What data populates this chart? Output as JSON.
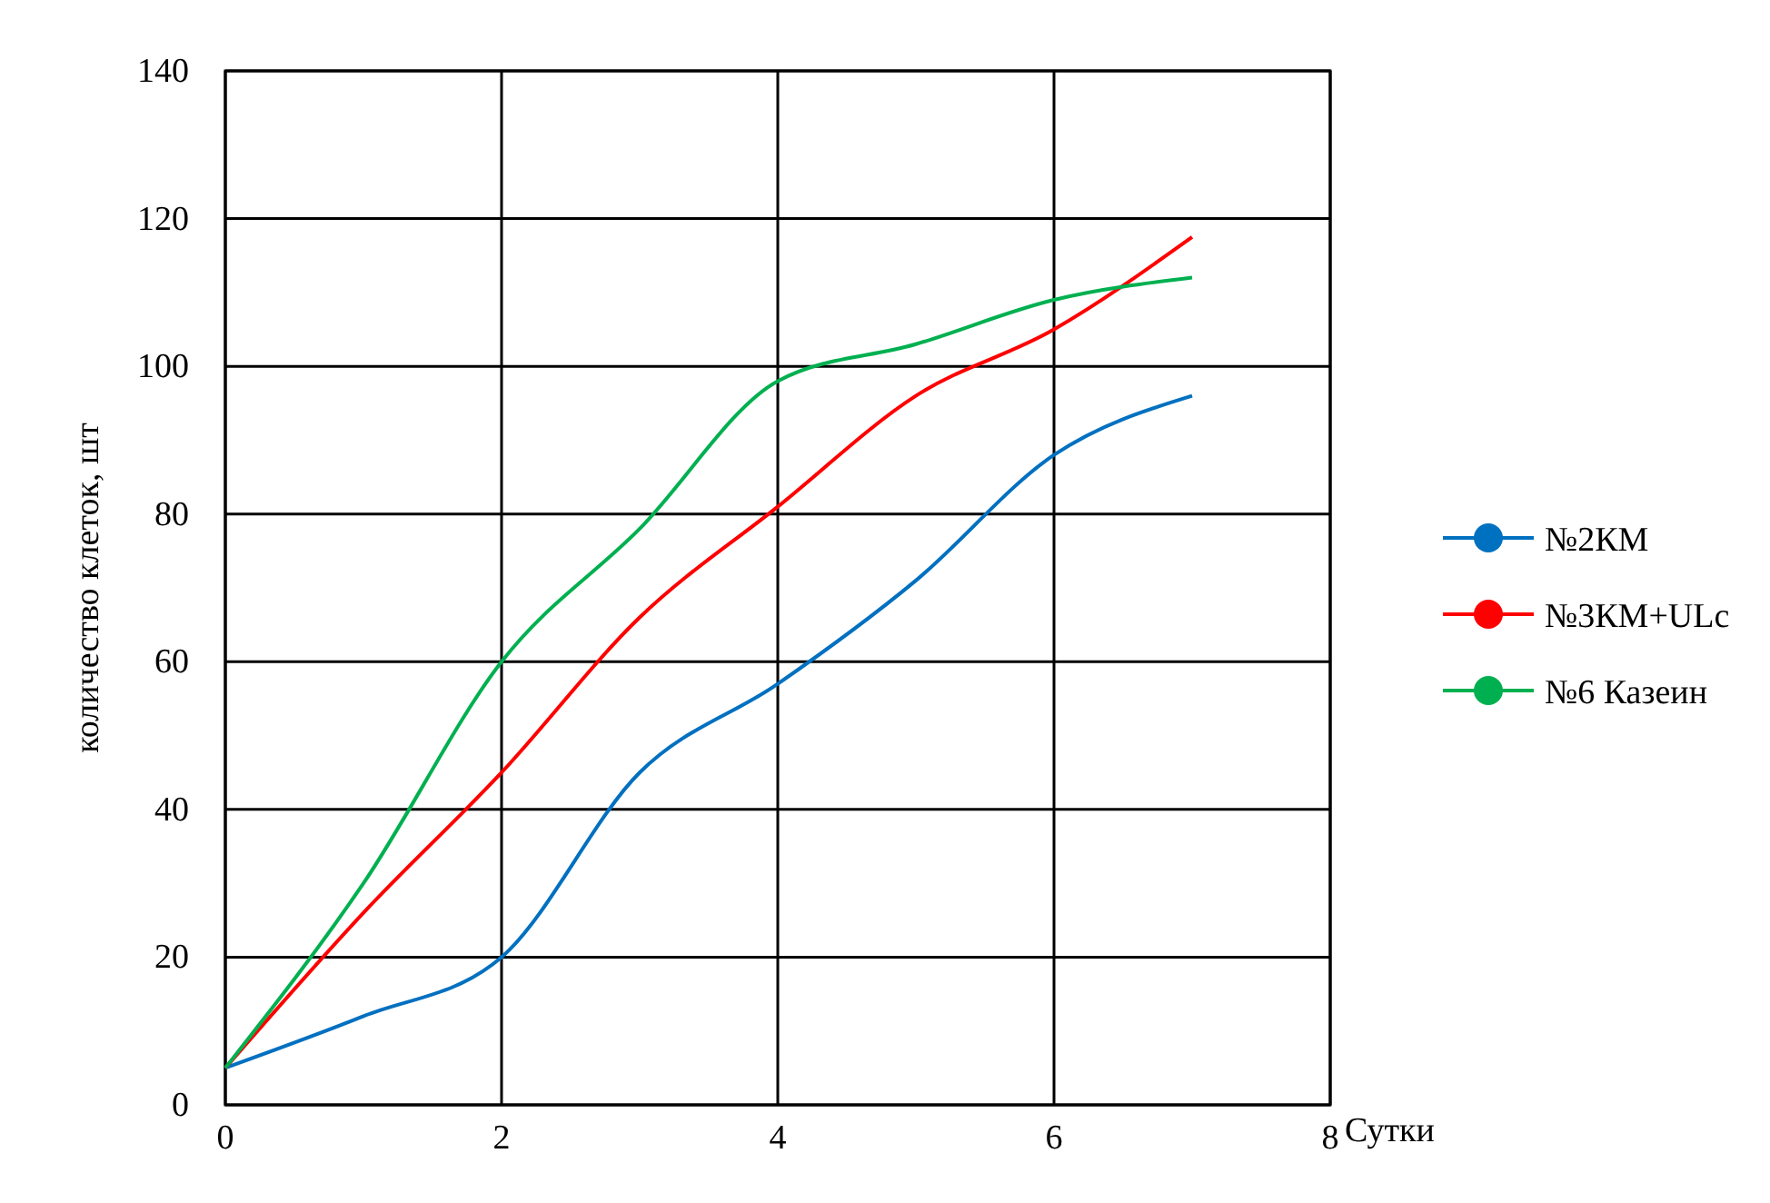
{
  "chart_data": {
    "type": "line",
    "xlabel": "Сутки",
    "ylabel": "количество клеток, шт",
    "x": [
      0,
      1,
      2,
      3,
      4,
      5,
      6,
      7
    ],
    "series": [
      {
        "name": "№2КМ",
        "color": "#0070c0",
        "values": [
          5,
          12,
          20,
          45,
          57,
          71,
          88,
          96
        ]
      },
      {
        "name": "№3КМ+ULc",
        "color": "#ff0000",
        "values": [
          5,
          26,
          45,
          66,
          81,
          96,
          105,
          117.5
        ]
      },
      {
        "name": "№6 Казеин",
        "color": "#00b050",
        "values": [
          5,
          30,
          60,
          78,
          98,
          103,
          109,
          112
        ]
      }
    ],
    "xlim": [
      0,
      8
    ],
    "xticks": [
      0,
      2,
      4,
      6,
      8
    ],
    "ylim": [
      0,
      140
    ],
    "yticks": [
      0,
      20,
      40,
      60,
      80,
      100,
      120,
      140
    ],
    "grid": true,
    "legend": "right",
    "line_style": "solid"
  }
}
